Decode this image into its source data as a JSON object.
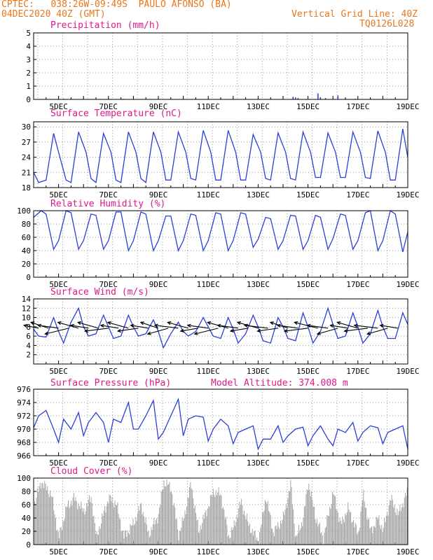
{
  "header": {
    "station": "CPTEC:   038:26W-09:49S  PAULO AFONSO (BA)",
    "date": "04DEC2020 40Z (GMT)",
    "grid_line": "Vertical Grid Line: 40Z",
    "code": "TQ0126L028",
    "model_altitude": "Model Altitude: 374.008 m"
  },
  "x_axis": {
    "start_day": 4.0,
    "end_day": 19.0,
    "tick_labels": [
      "5DEC",
      "7DEC",
      "9DEC",
      "11DEC",
      "13DEC",
      "15DEC",
      "17DEC",
      "19DEC"
    ],
    "tick_days": [
      5,
      7,
      9,
      11,
      13,
      15,
      17,
      19
    ]
  },
  "colors": {
    "line": "#2a3fd8",
    "cloud": "#a6a6a6",
    "wind_arrow": "#000000",
    "grid": "#999999"
  },
  "chart_data": [
    {
      "type": "bar",
      "title": "Precipitation (mm/h)",
      "ylim": [
        0,
        5
      ],
      "yticks": [
        0,
        1,
        2,
        3,
        4,
        5
      ],
      "grid": true,
      "x": [
        5.2,
        7.6,
        9.1,
        11.3,
        14.4,
        14.6,
        15.4,
        15.5,
        15.7,
        16.2,
        16.9
      ],
      "values": [
        0.05,
        0.04,
        0.03,
        0.02,
        0.2,
        0.1,
        0.45,
        0.15,
        0.1,
        0.3,
        0.05
      ]
    },
    {
      "type": "line",
      "title": "Surface Temperature (nC)",
      "ylim": [
        18,
        31
      ],
      "yticks": [
        18,
        21,
        24,
        27,
        30
      ],
      "grid": true,
      "x": [
        4.0,
        4.2,
        4.5,
        4.8,
        5.0,
        5.3,
        5.5,
        5.8,
        6.1,
        6.3,
        6.5,
        6.8,
        7.1,
        7.3,
        7.5,
        7.8,
        8.1,
        8.3,
        8.5,
        8.8,
        9.1,
        9.3,
        9.5,
        9.8,
        10.1,
        10.3,
        10.5,
        10.8,
        11.1,
        11.3,
        11.5,
        11.8,
        12.1,
        12.3,
        12.5,
        12.8,
        13.1,
        13.3,
        13.5,
        13.8,
        14.1,
        14.3,
        14.5,
        14.8,
        15.1,
        15.3,
        15.5,
        15.8,
        16.1,
        16.3,
        16.5,
        16.8,
        17.1,
        17.3,
        17.5,
        17.8,
        18.1,
        18.3,
        18.5,
        18.8,
        19.0
      ],
      "values": [
        21.0,
        19.0,
        19.5,
        28.7,
        25.0,
        19.5,
        19.0,
        29.0,
        25.0,
        19.8,
        19.0,
        28.7,
        25.0,
        19.5,
        19.0,
        29.0,
        25.0,
        19.8,
        19.0,
        29.0,
        25.0,
        19.5,
        19.5,
        29.0,
        25.0,
        19.8,
        19.5,
        29.3,
        25.0,
        19.5,
        19.5,
        29.3,
        25.0,
        19.5,
        19.5,
        28.5,
        25.0,
        19.8,
        19.5,
        28.8,
        25.0,
        19.8,
        19.5,
        29.0,
        25.0,
        20.0,
        20.0,
        28.8,
        25.0,
        20.0,
        20.0,
        29.0,
        25.0,
        20.0,
        19.8,
        29.2,
        25.0,
        19.5,
        19.5,
        29.6,
        24.0
      ]
    },
    {
      "type": "line",
      "title": "Relative Humidity (%)",
      "ylim": [
        0,
        100
      ],
      "yticks": [
        0,
        20,
        40,
        60,
        80,
        100
      ],
      "grid": true,
      "x": [
        4.0,
        4.3,
        4.5,
        4.8,
        5.0,
        5.3,
        5.5,
        5.8,
        6.0,
        6.3,
        6.5,
        6.8,
        7.0,
        7.3,
        7.5,
        7.8,
        8.0,
        8.3,
        8.5,
        8.8,
        9.0,
        9.3,
        9.5,
        9.8,
        10.0,
        10.3,
        10.5,
        10.8,
        11.0,
        11.3,
        11.5,
        11.8,
        12.0,
        12.3,
        12.5,
        12.8,
        13.0,
        13.3,
        13.5,
        13.8,
        14.0,
        14.3,
        14.5,
        14.8,
        15.0,
        15.3,
        15.5,
        15.8,
        16.0,
        16.3,
        16.5,
        16.8,
        17.0,
        17.3,
        17.5,
        17.8,
        18.0,
        18.3,
        18.5,
        18.8,
        19.0
      ],
      "values": [
        90,
        100,
        95,
        42,
        55,
        100,
        97,
        42,
        55,
        95,
        93,
        42,
        55,
        98,
        98,
        40,
        55,
        98,
        95,
        40,
        55,
        92,
        92,
        40,
        55,
        95,
        93,
        40,
        55,
        97,
        95,
        40,
        55,
        97,
        95,
        45,
        57,
        90,
        88,
        42,
        55,
        93,
        92,
        42,
        55,
        93,
        90,
        42,
        58,
        95,
        93,
        42,
        55,
        97,
        100,
        40,
        55,
        100,
        95,
        38,
        68
      ]
    },
    {
      "type": "line",
      "title": "Surface Wind (m/s)",
      "ylim": [
        0,
        14
      ],
      "yticks": [
        2,
        4,
        6,
        8,
        10,
        12,
        14
      ],
      "grid": true,
      "x": [
        4.0,
        4.2,
        4.5,
        4.8,
        5.0,
        5.2,
        5.5,
        5.8,
        6.0,
        6.2,
        6.5,
        6.8,
        7.0,
        7.2,
        7.5,
        7.8,
        8.0,
        8.2,
        8.5,
        8.8,
        9.0,
        9.2,
        9.5,
        9.8,
        10.0,
        10.2,
        10.5,
        10.8,
        11.0,
        11.2,
        11.5,
        11.8,
        12.0,
        12.2,
        12.5,
        12.8,
        13.0,
        13.2,
        13.5,
        13.8,
        14.0,
        14.2,
        14.5,
        14.8,
        15.0,
        15.2,
        15.5,
        15.8,
        16.0,
        16.2,
        16.5,
        16.8,
        17.0,
        17.2,
        17.5,
        17.8,
        18.0,
        18.2,
        18.5,
        18.8,
        19.0
      ],
      "values": [
        7.5,
        6.0,
        5.8,
        10.0,
        7.0,
        4.5,
        9.0,
        12.0,
        8.0,
        6.0,
        6.5,
        10.5,
        8.0,
        5.5,
        6.0,
        10.5,
        8.0,
        6.0,
        6.5,
        9.5,
        7.0,
        3.5,
        6.5,
        9.0,
        7.0,
        6.0,
        7.0,
        10.0,
        8.0,
        6.0,
        5.5,
        10.0,
        7.5,
        4.5,
        6.5,
        10.5,
        8.0,
        5.0,
        4.5,
        10.0,
        8.0,
        5.5,
        5.0,
        11.0,
        8.0,
        4.5,
        7.0,
        12.0,
        8.5,
        5.5,
        6.0,
        11.0,
        8.0,
        4.5,
        6.5,
        11.5,
        8.0,
        5.5,
        5.5,
        11.0,
        8.5
      ],
      "arrows": {
        "x": [
          4.2,
          4.6,
          5.0,
          5.4,
          5.8,
          6.2,
          6.6,
          7.0,
          7.4,
          7.8,
          8.2,
          8.6,
          9.0,
          9.4,
          9.8,
          10.2,
          10.6,
          11.0,
          11.4,
          11.8,
          12.2,
          12.6,
          13.0,
          13.4,
          13.8,
          14.2,
          14.6,
          15.0,
          15.4,
          15.8,
          16.2,
          16.6,
          17.0,
          17.4,
          17.8,
          18.2,
          18.6
        ],
        "u": [
          -5,
          -6,
          -7,
          -8,
          -7,
          -6,
          -7,
          -8,
          -6,
          -7,
          -7,
          -6,
          -6,
          -7,
          -8,
          -7,
          -6,
          -7,
          -8,
          -7,
          -7,
          -6,
          -7,
          -8,
          -7,
          -6,
          -7,
          -8,
          -8,
          -7,
          -7,
          -6,
          -7,
          -8,
          -8,
          -7,
          -6
        ],
        "v": [
          1,
          2,
          1,
          -2,
          2,
          1,
          2,
          -1,
          1,
          2,
          -1,
          1,
          2,
          -2,
          1,
          2,
          -1,
          1,
          -2,
          2,
          1,
          -1,
          2,
          1,
          -1,
          2,
          1,
          -1,
          2,
          1,
          -2,
          1,
          2,
          -1,
          1,
          -2,
          1
        ]
      }
    },
    {
      "type": "line",
      "title": "Surface Pressure (hPa)",
      "ylim": [
        966,
        976
      ],
      "yticks": [
        966,
        968,
        970,
        972,
        974,
        976
      ],
      "grid": true,
      "x": [
        4.0,
        4.2,
        4.5,
        4.8,
        5.0,
        5.2,
        5.5,
        5.8,
        6.0,
        6.2,
        6.5,
        6.8,
        7.0,
        7.2,
        7.5,
        7.8,
        8.0,
        8.2,
        8.5,
        8.8,
        9.0,
        9.2,
        9.5,
        9.8,
        10.0,
        10.2,
        10.5,
        10.8,
        11.0,
        11.2,
        11.5,
        11.8,
        12.0,
        12.2,
        12.5,
        12.8,
        13.0,
        13.2,
        13.5,
        13.8,
        14.0,
        14.2,
        14.5,
        14.8,
        15.0,
        15.2,
        15.5,
        15.8,
        16.0,
        16.2,
        16.5,
        16.8,
        17.0,
        17.2,
        17.5,
        17.8,
        18.0,
        18.2,
        18.5,
        18.8,
        19.0
      ],
      "values": [
        970.2,
        972.0,
        972.8,
        970.0,
        968.0,
        971.5,
        970.0,
        972.5,
        969.0,
        971.0,
        972.5,
        971.0,
        968.0,
        971.5,
        971.0,
        974.0,
        970.0,
        970.0,
        972.0,
        974.3,
        968.5,
        969.5,
        972.0,
        974.5,
        969.0,
        971.5,
        972.0,
        971.8,
        968.2,
        970.0,
        971.5,
        970.5,
        967.8,
        969.5,
        970.0,
        970.5,
        967.0,
        968.5,
        968.5,
        970.5,
        968.0,
        969.0,
        970.0,
        970.3,
        967.5,
        969.0,
        970.5,
        968.5,
        967.5,
        970.0,
        969.5,
        971.0,
        968.2,
        969.5,
        970.5,
        970.2,
        967.8,
        969.5,
        970.0,
        970.5,
        967.0
      ]
    },
    {
      "type": "bar",
      "title": "Cloud Cover (%)",
      "ylim": [
        0,
        100
      ],
      "yticks": [
        0,
        20,
        40,
        60,
        80,
        100
      ],
      "grid": true,
      "anchors_x": [
        4.0,
        4.3,
        4.7,
        5.0,
        5.3,
        5.6,
        6.0,
        6.3,
        6.5,
        6.8,
        7.0,
        7.3,
        7.6,
        8.0,
        8.3,
        8.6,
        9.0,
        9.2,
        9.5,
        9.8,
        10.0,
        10.3,
        10.6,
        10.9,
        11.2,
        11.5,
        11.8,
        12.0,
        12.3,
        12.6,
        13.0,
        13.3,
        13.6,
        14.0,
        14.3,
        14.5,
        14.8,
        15.0,
        15.3,
        15.6,
        16.0,
        16.3,
        16.6,
        17.0,
        17.2,
        17.5,
        17.8,
        18.0,
        18.3,
        18.6,
        19.0
      ],
      "anchors_v": [
        60,
        95,
        75,
        10,
        55,
        70,
        50,
        72,
        10,
        48,
        70,
        62,
        12,
        32,
        60,
        15,
        45,
        95,
        85,
        15,
        38,
        92,
        20,
        48,
        80,
        75,
        12,
        25,
        65,
        30,
        5,
        72,
        18,
        40,
        92,
        8,
        40,
        95,
        40,
        10,
        78,
        30,
        55,
        15,
        75,
        20,
        40,
        22,
        70,
        45,
        82
      ]
    }
  ]
}
